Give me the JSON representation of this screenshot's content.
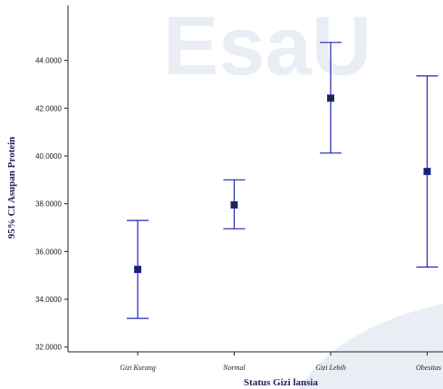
{
  "watermark": {
    "text": "EsaU"
  },
  "chart_data": {
    "type": "errorbar",
    "title": "",
    "xlabel": "Status Gizi lansia",
    "ylabel": "95% CI Asupan Protein",
    "categories": [
      "Gizi Kurang",
      "Normal",
      "Gizi Lebih",
      "Obesitas"
    ],
    "series": [
      {
        "mean": [
          35.25,
          37.95,
          42.42,
          39.35
        ],
        "lower": [
          33.2,
          36.95,
          40.12,
          35.35
        ],
        "upper": [
          37.3,
          39.0,
          44.75,
          43.35
        ]
      }
    ],
    "ylim": [
      31.8,
      46.3
    ],
    "yticks": [
      32,
      34,
      36,
      38,
      40,
      42,
      44
    ],
    "ytick_labels": [
      "32.0000",
      "34.0000",
      "36.0000",
      "38.0000",
      "40.0000",
      "42.0000",
      "44.0000"
    ],
    "grid": false,
    "legend": "none",
    "colors": {
      "bar": "#2323b4",
      "marker": "#1a2a3a",
      "axis": "#222222",
      "watermark": "#e9eef5"
    }
  }
}
